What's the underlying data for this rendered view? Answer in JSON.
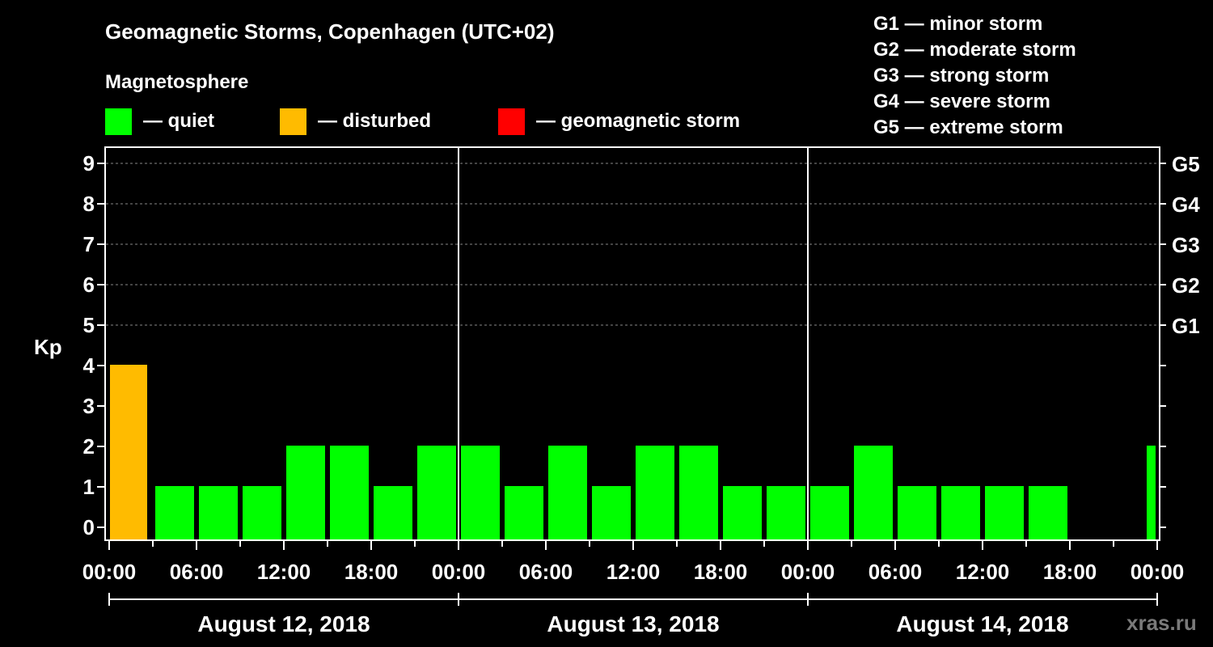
{
  "chart_data": {
    "type": "bar",
    "title": "Geomagnetic Storms, Copenhagen (UTC+02)",
    "ylabel": "Kp",
    "ylim": [
      0,
      9
    ],
    "yticks": [
      "0",
      "1",
      "2",
      "3",
      "4",
      "5",
      "6",
      "7",
      "8",
      "9"
    ],
    "right_axis": [
      {
        "kp": 5,
        "label": "G1"
      },
      {
        "kp": 6,
        "label": "G2"
      },
      {
        "kp": 7,
        "label": "G3"
      },
      {
        "kp": 8,
        "label": "G4"
      },
      {
        "kp": 9,
        "label": "G5"
      }
    ],
    "storm_scale": [
      "G1 — minor storm",
      "G2 — moderate storm",
      "G3 — strong storm",
      "G4 — severe storm",
      "G5 — extreme storm"
    ],
    "legend": {
      "title": "Magnetosphere",
      "items": [
        {
          "label": "— quiet",
          "color": "#00ff00"
        },
        {
          "label": "— disturbed",
          "color": "#ffbb00"
        },
        {
          "label": "— geomagnetic storm",
          "color": "#ff0000"
        }
      ]
    },
    "x_tick_labels": [
      "00:00",
      "06:00",
      "12:00",
      "18:00",
      "00:00",
      "06:00",
      "12:00",
      "18:00",
      "00:00",
      "06:00",
      "12:00",
      "18:00",
      "00:00"
    ],
    "days": [
      "August 12, 2018",
      "August 13, 2018",
      "August 14, 2018"
    ],
    "interval_hours": 3,
    "series": [
      {
        "values": [
          4,
          1,
          1,
          1,
          2,
          2,
          1,
          2,
          2,
          1,
          2,
          1,
          2,
          2,
          1,
          1,
          1,
          2,
          1,
          1,
          1,
          1,
          null,
          2
        ],
        "status": [
          "disturbed",
          "quiet",
          "quiet",
          "quiet",
          "quiet",
          "quiet",
          "quiet",
          "quiet",
          "quiet",
          "quiet",
          "quiet",
          "quiet",
          "quiet",
          "quiet",
          "quiet",
          "quiet",
          "quiet",
          "quiet",
          "quiet",
          "quiet",
          "quiet",
          "quiet",
          null,
          "quiet"
        ]
      }
    ],
    "grid": true,
    "colors": {
      "background": "#000000",
      "quiet": "#00ff00",
      "disturbed": "#ffbb00",
      "storm": "#ff0000",
      "grid": "#888888",
      "axis": "#ffffff"
    }
  },
  "watermark": "xras.ru"
}
